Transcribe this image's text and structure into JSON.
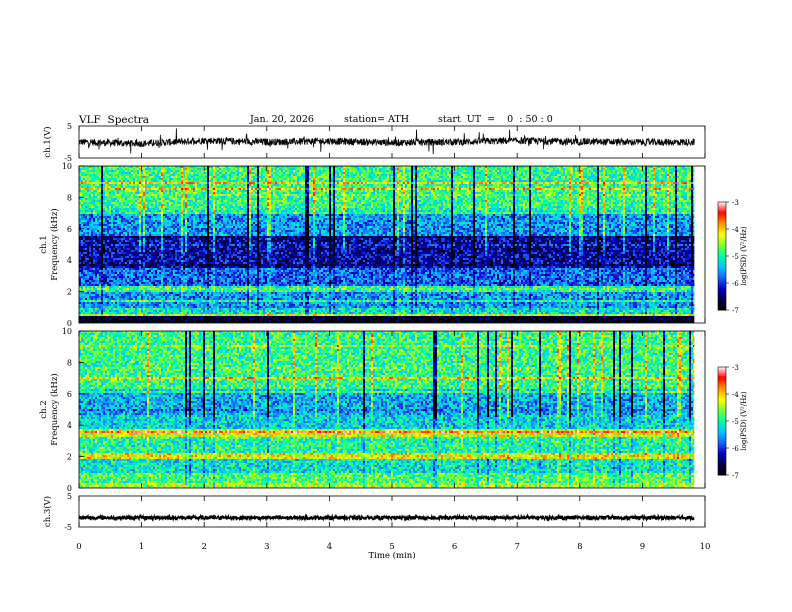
{
  "header": {
    "title": "VLF  Spectra",
    "date": "Jan. 20, 2026",
    "station": "station= ATH",
    "start_ut": "start  UT  =    0  : 50 : 0"
  },
  "colors": {
    "spectrogram_colormap": [
      "#000000",
      "#00004a",
      "#0000c8",
      "#1e64ff",
      "#00c8ff",
      "#00ffa0",
      "#7dff32",
      "#ffff00",
      "#ff9600",
      "#ff0000",
      "#ffffff"
    ],
    "trace": "#000000",
    "background": "#ffffff"
  },
  "chart_data": [
    {
      "type": "line",
      "name": "ch1-waveform",
      "ylabel": "ch.1(V)",
      "ylim": [
        -5,
        5
      ],
      "y_ticks": [
        "5",
        "-5"
      ],
      "x_range": [
        0,
        10
      ],
      "data_end_min": 9.83,
      "series": [
        {
          "x": [
            0,
            1,
            2,
            3,
            4,
            5,
            6,
            7,
            8,
            9,
            9.83
          ],
          "values": [
            0,
            -0.5,
            0.5,
            0,
            0.3,
            -0.2,
            0,
            0.4,
            0.1,
            -0.1,
            0
          ]
        }
      ]
    },
    {
      "type": "heatmap",
      "name": "ch1-spectrogram",
      "ylabel": "ch.1\nFrequency  (kHz)",
      "ylim_khz": [
        0,
        10
      ],
      "y_ticks": [
        "0",
        "2",
        "4",
        "6",
        "8",
        "10"
      ],
      "x_range_min": [
        0,
        9.83
      ],
      "colorbar": {
        "label": "log(PSD) (V²/Hz)",
        "range": [
          -7,
          -3
        ],
        "ticks": [
          "-3",
          "-4",
          "-5",
          "-6",
          "-7"
        ]
      },
      "bands_khz_logpsd": [
        [
          0.0,
          0.2,
          -7
        ],
        [
          0.2,
          0.5,
          -6.8
        ],
        [
          0.5,
          1.0,
          -5.2
        ],
        [
          1.0,
          2.0,
          -5.6
        ],
        [
          2.0,
          2.4,
          -5.0
        ],
        [
          2.4,
          3.5,
          -5.8
        ],
        [
          3.5,
          5.5,
          -6.3
        ],
        [
          5.5,
          7.0,
          -5.6
        ],
        [
          7.0,
          10.0,
          -4.9
        ]
      ]
    },
    {
      "type": "heatmap",
      "name": "ch2-spectrogram",
      "ylabel": "ch.2\nFrequency  (kHz)",
      "ylim_khz": [
        0,
        10
      ],
      "y_ticks": [
        "0",
        "2",
        "4",
        "6",
        "8",
        "10"
      ],
      "x_range_min": [
        0,
        9.83
      ],
      "colorbar": {
        "label": "log(PSD) (V²/Hz)",
        "range": [
          -7,
          -3
        ],
        "ticks": [
          "-3",
          "-4",
          "-5",
          "-6",
          "-7"
        ]
      },
      "bands_khz_logpsd": [
        [
          0.0,
          0.3,
          -4.5
        ],
        [
          0.3,
          1.0,
          -4.8
        ],
        [
          1.0,
          1.8,
          -5.2
        ],
        [
          1.8,
          2.2,
          -4.2
        ],
        [
          2.2,
          3.2,
          -5.0
        ],
        [
          3.2,
          3.8,
          -4.3
        ],
        [
          3.8,
          4.6,
          -5.3
        ],
        [
          4.6,
          6.0,
          -5.5
        ],
        [
          6.0,
          10.0,
          -4.9
        ]
      ]
    },
    {
      "type": "line",
      "name": "ch3-waveform",
      "ylabel": "ch.3(V)",
      "ylim": [
        -5,
        5
      ],
      "y_ticks": [
        "5",
        "-5"
      ],
      "x_range": [
        0,
        10
      ],
      "data_end_min": 9.83,
      "series": [
        {
          "x": [
            0,
            9.83
          ],
          "values": [
            -2.0,
            -2.0
          ]
        }
      ]
    }
  ],
  "x_axis": {
    "label": "Time  (min)",
    "range": [
      0,
      10
    ],
    "ticks": [
      "0",
      "1",
      "2",
      "3",
      "4",
      "5",
      "6",
      "7",
      "8",
      "9",
      "10"
    ]
  }
}
